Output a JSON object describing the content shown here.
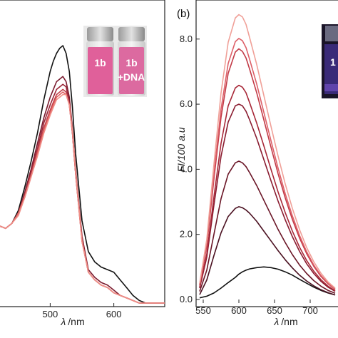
{
  "chart_data": [
    {
      "type": "line",
      "panel": "a",
      "xlabel_symbol": "λ",
      "xlabel_unit": "/nm",
      "ylabel": "",
      "xlim": [
        420,
        680
      ],
      "ylim": [
        0,
        1
      ],
      "xticks": [
        500,
        600
      ],
      "x": [
        420,
        430,
        440,
        450,
        460,
        470,
        480,
        490,
        500,
        505,
        510,
        515,
        520,
        525,
        530,
        535,
        540,
        550,
        560,
        570,
        580,
        590,
        600,
        610,
        620,
        630,
        640,
        650,
        660,
        670,
        680
      ],
      "series": [
        {
          "color": "#111111",
          "values": [
            0.3,
            0.29,
            0.31,
            0.36,
            0.45,
            0.55,
            0.66,
            0.79,
            0.9,
            0.94,
            0.97,
            0.99,
            1.0,
            0.97,
            0.9,
            0.76,
            0.58,
            0.32,
            0.2,
            0.16,
            0.14,
            0.13,
            0.12,
            0.09,
            0.06,
            0.03,
            0.01,
            0.0,
            0.0,
            0.0,
            0.0
          ]
        },
        {
          "color": "#7a1a2e",
          "values": [
            0.3,
            0.29,
            0.31,
            0.35,
            0.43,
            0.52,
            0.62,
            0.72,
            0.8,
            0.83,
            0.86,
            0.87,
            0.88,
            0.86,
            0.8,
            0.68,
            0.52,
            0.26,
            0.13,
            0.1,
            0.08,
            0.07,
            0.05,
            0.03,
            0.02,
            0.01,
            0.0,
            0.0,
            0.0,
            0.0,
            0.0
          ]
        },
        {
          "color": "#9a2638",
          "values": [
            0.3,
            0.29,
            0.31,
            0.35,
            0.42,
            0.51,
            0.6,
            0.7,
            0.77,
            0.8,
            0.83,
            0.84,
            0.85,
            0.84,
            0.78,
            0.66,
            0.5,
            0.25,
            0.12,
            0.09,
            0.07,
            0.06,
            0.04,
            0.03,
            0.02,
            0.01,
            0.0,
            0.0,
            0.0,
            0.0,
            0.0
          ]
        },
        {
          "color": "#c0404a",
          "values": [
            0.3,
            0.29,
            0.31,
            0.35,
            0.42,
            0.5,
            0.59,
            0.68,
            0.75,
            0.78,
            0.81,
            0.82,
            0.83,
            0.82,
            0.77,
            0.66,
            0.5,
            0.24,
            0.12,
            0.09,
            0.07,
            0.06,
            0.04,
            0.03,
            0.02,
            0.01,
            0.0,
            0.0,
            0.0,
            0.0,
            0.0
          ]
        },
        {
          "color": "#e06060",
          "values": [
            0.3,
            0.29,
            0.31,
            0.35,
            0.41,
            0.49,
            0.58,
            0.67,
            0.74,
            0.77,
            0.8,
            0.81,
            0.82,
            0.81,
            0.77,
            0.66,
            0.5,
            0.24,
            0.12,
            0.09,
            0.07,
            0.06,
            0.04,
            0.03,
            0.02,
            0.01,
            0.0,
            0.0,
            0.0,
            0.0,
            0.0
          ]
        },
        {
          "color": "#f09088",
          "values": [
            0.3,
            0.29,
            0.31,
            0.34,
            0.41,
            0.49,
            0.57,
            0.66,
            0.73,
            0.76,
            0.79,
            0.8,
            0.81,
            0.81,
            0.77,
            0.67,
            0.51,
            0.24,
            0.12,
            0.09,
            0.07,
            0.06,
            0.04,
            0.03,
            0.02,
            0.01,
            0.0,
            0.0,
            0.0,
            0.0,
            0.0
          ]
        }
      ],
      "inset": {
        "vials": [
          {
            "label_line1": "1b",
            "label_line2": "",
            "liquid_color": "#e0609a"
          },
          {
            "label_line1": "1b",
            "label_line2": "+DNA",
            "liquid_color": "#dc6aa0"
          }
        ]
      }
    },
    {
      "type": "line",
      "panel": "b",
      "panel_label": "(b)",
      "xlabel_symbol": "λ",
      "xlabel_unit": "/nm",
      "ylabel": "FI/100 a.u",
      "xlim": [
        540,
        740
      ],
      "ylim": [
        0,
        9.2
      ],
      "xticks": [
        550,
        600,
        650,
        700
      ],
      "yticks": [
        0.0,
        2.0,
        4.0,
        6.0,
        8.0
      ],
      "ytick_labels": [
        "0.0",
        "2.0",
        "4.0",
        "6.0",
        "8.0"
      ],
      "x": [
        545,
        555,
        565,
        575,
        585,
        595,
        600,
        605,
        610,
        615,
        625,
        635,
        645,
        655,
        665,
        675,
        685,
        695,
        705,
        715,
        725,
        735
      ],
      "series": [
        {
          "color": "#111111",
          "values": [
            0.05,
            0.1,
            0.2,
            0.35,
            0.52,
            0.68,
            0.78,
            0.85,
            0.9,
            0.94,
            0.98,
            1.0,
            0.98,
            0.93,
            0.85,
            0.75,
            0.62,
            0.5,
            0.38,
            0.28,
            0.2,
            0.14
          ]
        },
        {
          "color": "#4a1020",
          "values": [
            0.15,
            0.6,
            1.35,
            2.05,
            2.55,
            2.8,
            2.85,
            2.82,
            2.75,
            2.65,
            2.4,
            2.1,
            1.8,
            1.5,
            1.22,
            0.97,
            0.75,
            0.57,
            0.42,
            0.3,
            0.21,
            0.14
          ]
        },
        {
          "color": "#6a1526",
          "values": [
            0.25,
            0.9,
            2.0,
            3.1,
            3.85,
            4.2,
            4.25,
            4.2,
            4.08,
            3.9,
            3.5,
            3.05,
            2.6,
            2.15,
            1.75,
            1.38,
            1.06,
            0.8,
            0.58,
            0.41,
            0.28,
            0.19
          ]
        },
        {
          "color": "#8a1c30",
          "values": [
            0.35,
            1.3,
            2.9,
            4.4,
            5.45,
            5.95,
            6.0,
            5.95,
            5.78,
            5.52,
            4.95,
            4.3,
            3.65,
            3.02,
            2.45,
            1.93,
            1.48,
            1.1,
            0.8,
            0.56,
            0.38,
            0.25
          ]
        },
        {
          "color": "#a82838",
          "values": [
            0.38,
            1.4,
            3.15,
            4.8,
            5.95,
            6.5,
            6.58,
            6.52,
            6.35,
            6.05,
            5.42,
            4.72,
            4.0,
            3.3,
            2.67,
            2.1,
            1.61,
            1.2,
            0.87,
            0.61,
            0.41,
            0.27
          ]
        },
        {
          "color": "#c23a46",
          "values": [
            0.45,
            1.65,
            3.7,
            5.6,
            6.95,
            7.6,
            7.7,
            7.62,
            7.42,
            7.08,
            6.35,
            5.52,
            4.68,
            3.86,
            3.12,
            2.46,
            1.89,
            1.41,
            1.02,
            0.71,
            0.48,
            0.31
          ]
        },
        {
          "color": "#dd6068",
          "values": [
            0.47,
            1.72,
            3.85,
            5.85,
            7.25,
            7.92,
            8.02,
            7.95,
            7.74,
            7.38,
            6.62,
            5.75,
            4.88,
            4.03,
            3.25,
            2.57,
            1.97,
            1.47,
            1.06,
            0.74,
            0.5,
            0.32
          ]
        },
        {
          "color": "#f0a098",
          "values": [
            0.5,
            1.85,
            4.15,
            6.35,
            7.9,
            8.65,
            8.75,
            8.68,
            8.45,
            8.05,
            7.22,
            6.27,
            5.32,
            4.4,
            3.55,
            2.8,
            2.15,
            1.6,
            1.16,
            0.81,
            0.54,
            0.35
          ]
        }
      ],
      "inset": {
        "vials": [
          {
            "label_line1": "1",
            "label_line2": "",
            "liquid_color": "#3a2a78"
          }
        ]
      }
    }
  ]
}
